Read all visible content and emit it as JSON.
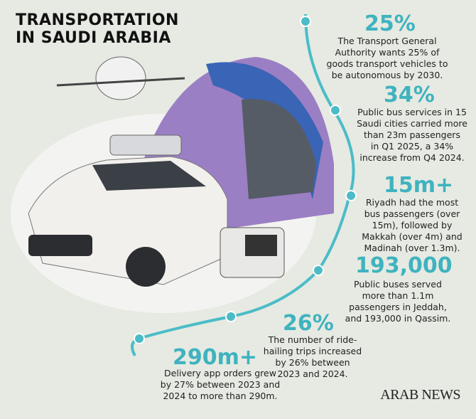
{
  "header": {
    "title": [
      "TRANSPORTATION",
      "IN SAUDI ARABIA"
    ]
  },
  "stats": [
    {
      "figure": "25%",
      "lines": [
        "The Transport General",
        "Authority wants 25% of",
        "goods transport vehicles to",
        "be autonomous by 2030."
      ]
    },
    {
      "figure": "34%",
      "lines": [
        "Public bus services in 15",
        "Saudi cities carried more",
        "than 23m passengers",
        "in Q1 2025, a 34%",
        "increase from Q4 2024."
      ]
    },
    {
      "figure": "15m+",
      "lines": [
        "Riyadh had the most",
        "bus passengers (over",
        "15m), followed by",
        "Makkah (over 4m) and",
        "Madinah (over 1.3m)."
      ]
    },
    {
      "figure": "193,000",
      "lines": [
        "Public buses served",
        "more than 1.1m",
        "passengers in Jeddah,",
        "and 193,000 in Qassim."
      ]
    },
    {
      "figure": "26%",
      "lines": [
        "The number of ride-",
        "hailing trips increased",
        "by 26% between",
        "2023 and 2024."
      ]
    },
    {
      "figure": "290m+",
      "lines": [
        "Delivery app orders grew",
        "by 27% between 2023 and",
        "2024 to more than 290m."
      ]
    }
  ],
  "logo": "ARAB NEWS"
}
